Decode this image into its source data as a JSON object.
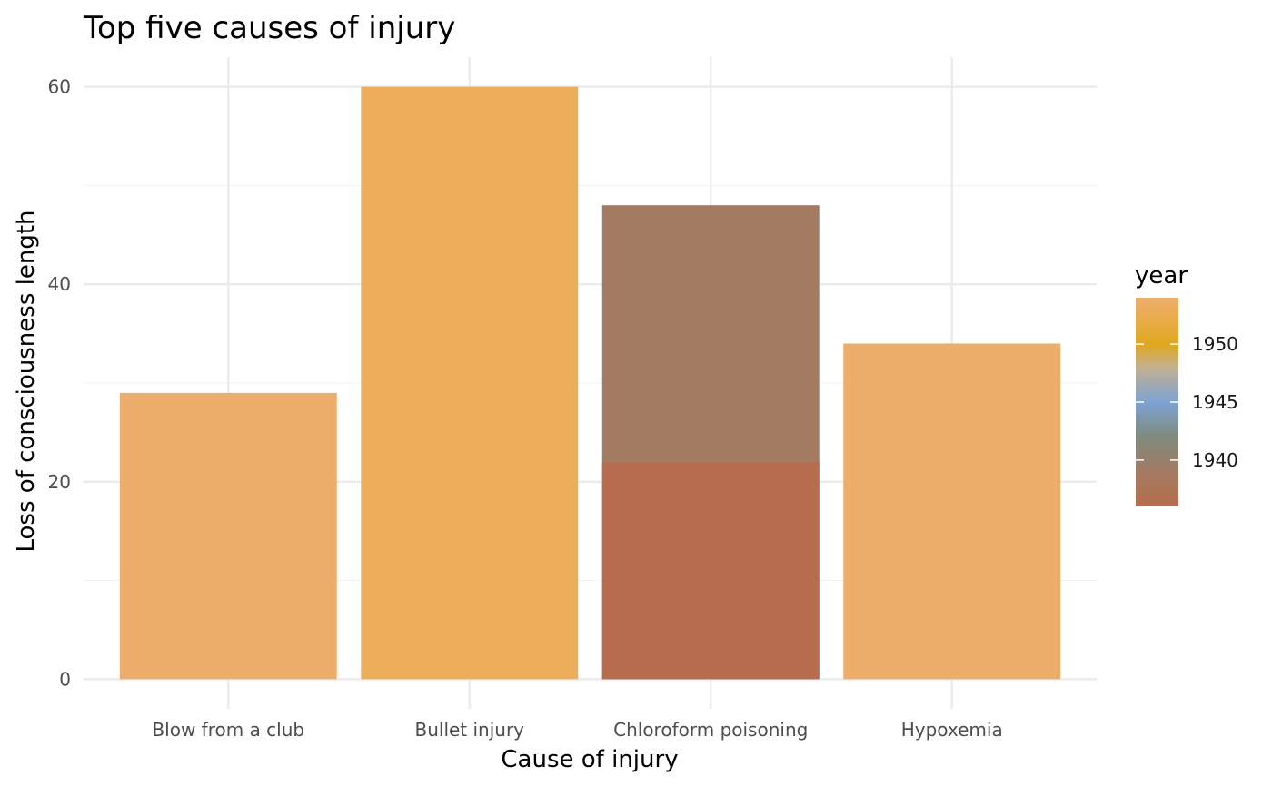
{
  "chart_data": {
    "type": "bar",
    "title": "Top five causes of injury",
    "xlabel": "Cause of injury",
    "ylabel": "Loss of consciousness length",
    "categories": [
      "Blow from a club",
      "Bullet injury",
      "Chloroform poisoning",
      "Hypoxemia"
    ],
    "ylim": [
      -3,
      63
    ],
    "yticks": [
      0,
      20,
      40,
      60
    ],
    "grid": true,
    "bars": [
      {
        "category": "Blow from a club",
        "value": 29,
        "year": 1954,
        "color": "#EEAE6B"
      },
      {
        "category": "Bullet injury",
        "value": 60,
        "year": 1953,
        "color": "#ECAE5B"
      },
      {
        "category": "Chloroform poisoning",
        "value": 48,
        "year": 1939,
        "color": "#A37B63"
      },
      {
        "category": "Chloroform poisoning",
        "value": 22,
        "year": 1936,
        "color": "#B76D4D"
      },
      {
        "category": "Hypoxemia",
        "value": 34,
        "year": 1954,
        "color": "#EEAE6B"
      }
    ],
    "legend": {
      "title": "year",
      "position": "right",
      "ticks": [
        "1950",
        "1945",
        "1940"
      ],
      "range": [
        1936,
        1954
      ],
      "tick_values": [
        1950,
        1945,
        1940
      ],
      "gradient": [
        {
          "value": 1936,
          "color": "#B76D4D"
        },
        {
          "value": 1939,
          "color": "#A37B63"
        },
        {
          "value": 1942,
          "color": "#7E8A7E"
        },
        {
          "value": 1945,
          "color": "#7DA3D3"
        },
        {
          "value": 1948,
          "color": "#C4B090"
        },
        {
          "value": 1950,
          "color": "#E0A81E"
        },
        {
          "value": 1952,
          "color": "#E8AC48"
        },
        {
          "value": 1954,
          "color": "#EEAE6B"
        }
      ]
    }
  }
}
